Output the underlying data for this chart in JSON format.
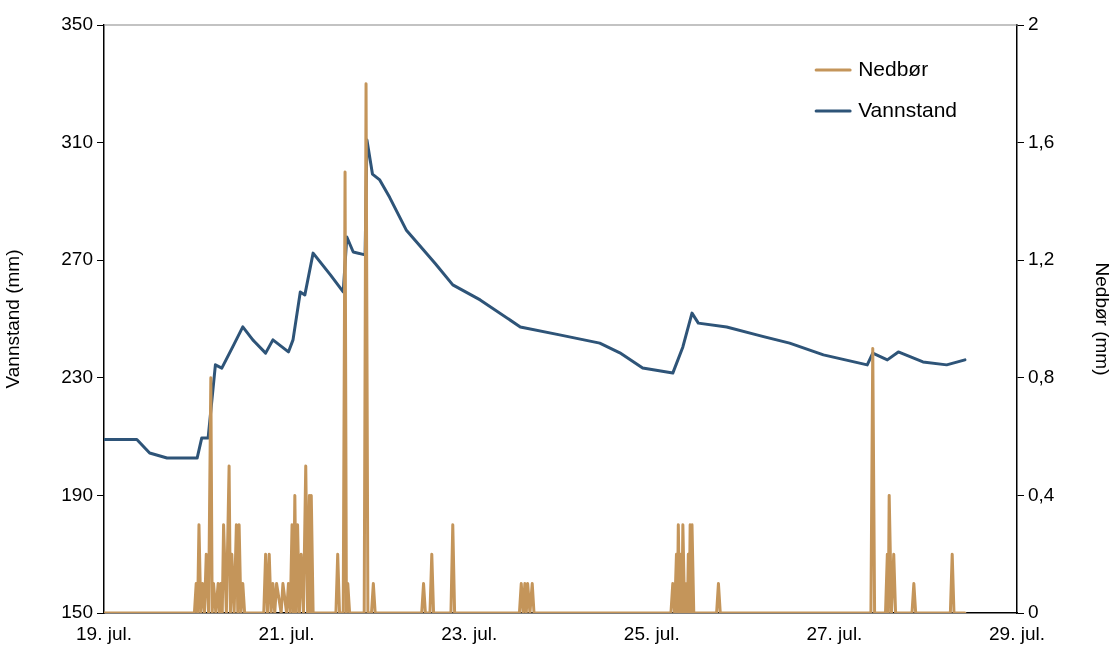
{
  "chart_data": {
    "type": "line",
    "ylabel": "Vannstand (mm)",
    "y2label": "Nedbør (mm)",
    "legend": "top right",
    "grid": false,
    "marker": "none",
    "line_style": "solid",
    "xlim": [
      "--07-19",
      "--07-29"
    ],
    "xticks": [
      {
        "value": "--07-19",
        "label": "19. jul."
      },
      {
        "value": "--07-21",
        "label": "21. jul."
      },
      {
        "value": "--07-23",
        "label": "23. jul."
      },
      {
        "value": "--07-25",
        "label": "25. jul."
      },
      {
        "value": "--07-27",
        "label": "27. jul."
      },
      {
        "value": "--07-29",
        "label": "29. jul."
      }
    ],
    "ylim": [
      150,
      350
    ],
    "yticks": [
      150,
      190,
      230,
      270,
      310,
      350
    ],
    "y2lim": [
      0,
      2
    ],
    "y2ticks": [
      0,
      {
        "value": 0.4,
        "label": "0,4"
      },
      {
        "value": 0.8,
        "label": "0,8"
      },
      {
        "value": 1.2,
        "label": "1,2"
      },
      {
        "value": 1.6,
        "label": "1,6"
      },
      2
    ],
    "series": [
      {
        "name": "Nedbør",
        "color": "#c4955a",
        "axis": "y2",
        "x": [
          "--07-19T00:00",
          "--07-19T23:46",
          "--07-20T00:14",
          "--07-20T00:36",
          "--07-20T00:58",
          "--07-20T01:26",
          "--07-20T01:55",
          "--07-20T02:24",
          "--07-20T02:53",
          "--07-20T03:29",
          "--07-20T04:05",
          "--07-20T04:26",
          "--07-20T04:48",
          "--07-20T05:24",
          "--07-20T06:00",
          "--07-20T06:22",
          "--07-20T06:43",
          "--07-20T07:05",
          "--07-20T07:26",
          "--07-20T08:10",
          "--07-20T08:53",
          "--07-20T09:14",
          "--07-20T09:36",
          "--07-20T10:12",
          "--07-20T10:48",
          "--07-20T11:10",
          "--07-20T11:31",
          "--07-20T12:00",
          "--07-20T12:29",
          "--07-20T12:58",
          "--07-20T18:00",
          "--07-20T18:29",
          "--07-20T18:58",
          "--07-20T19:26",
          "--07-20T19:55",
          "--07-20T20:24",
          "--07-20T20:53",
          "--07-20T21:22",
          "--07-20T22:34",
          "--07-20T23:02",
          "--07-21T00:00",
          "--07-21T00:29",
          "--07-21T00:58",
          "--07-21T01:26",
          "--07-21T01:48",
          "--07-21T02:10",
          "--07-21T02:31",
          "--07-21T02:53",
          "--07-21T03:22",
          "--07-21T03:50",
          "--07-21T04:26",
          "--07-21T05:02",
          "--07-21T05:31",
          "--07-21T06:00",
          "--07-21T06:14",
          "--07-21T06:29",
          "--07-21T06:58",
          "--07-21T12:58",
          "--07-21T13:26",
          "--07-21T13:55",
          "--07-21T14:53",
          "--07-21T15:22",
          "--07-21T15:43",
          "--07-21T16:05",
          "--07-21T16:34",
          "--07-21T20:24",
          "--07-21T20:53",
          "--07-21T21:22",
          "--07-21T22:19",
          "--07-21T22:48",
          "--07-21T23:17",
          "--07-22T11:31",
          "--07-22T12:00",
          "--07-22T12:29",
          "--07-22T13:41",
          "--07-22T14:10",
          "--07-22T14:38",
          "--07-22T19:12",
          "--07-22T19:41",
          "--07-22T20:10",
          "--07-23T13:12",
          "--07-23T13:41",
          "--07-23T14:10",
          "--07-23T14:38",
          "--07-23T15:00",
          "--07-23T15:22",
          "--07-23T15:58",
          "--07-23T16:34",
          "--07-23T17:02",
          "--07-25T05:02",
          "--07-25T05:31",
          "--07-25T06:00",
          "--07-25T06:29",
          "--07-25T06:43",
          "--07-25T06:58",
          "--07-25T07:19",
          "--07-25T07:41",
          "--07-25T07:55",
          "--07-25T08:10",
          "--07-25T08:38",
          "--07-25T09:07",
          "--07-25T09:22",
          "--07-25T09:36",
          "--07-25T09:50",
          "--07-25T10:05",
          "--07-25T10:19",
          "--07-25T10:34",
          "--07-25T11:02",
          "--07-25T17:02",
          "--07-25T17:31",
          "--07-25T18:00",
          "--07-27T09:36",
          "--07-27T10:05",
          "--07-27T10:34",
          "--07-27T13:26",
          "--07-27T13:55",
          "--07-27T14:10",
          "--07-27T14:24",
          "--07-27T15:00",
          "--07-27T15:36",
          "--07-27T16:05",
          "--07-27T20:24",
          "--07-27T20:53",
          "--07-27T21:22",
          "--07-28T06:29",
          "--07-28T06:58",
          "--07-28T07:26",
          "--07-28T10:19"
        ],
        "values": [
          0,
          0,
          0.1,
          0,
          0.3,
          0,
          0.1,
          0,
          0.2,
          0,
          0.8,
          0,
          0.1,
          0,
          0.1,
          0,
          0.1,
          0,
          0.3,
          0,
          0.5,
          0,
          0.2,
          0,
          0.3,
          0,
          0.3,
          0,
          0.1,
          0,
          0,
          0.2,
          0,
          0.2,
          0,
          0.1,
          0,
          0.1,
          0,
          0.1,
          0,
          0.1,
          0,
          0.3,
          0,
          0.4,
          0,
          0.3,
          0,
          0.2,
          0,
          0.5,
          0,
          0.4,
          0,
          0.4,
          0,
          0,
          0.2,
          0,
          0,
          1.5,
          0,
          0.1,
          0,
          0,
          1.8,
          0,
          0,
          0.1,
          0,
          0,
          0.1,
          0,
          0,
          0.2,
          0,
          0,
          0.3,
          0,
          0,
          0.1,
          0,
          0.1,
          0,
          0.1,
          0,
          0.1,
          0,
          0,
          0.1,
          0,
          0.2,
          0,
          0.3,
          0,
          0.2,
          0,
          0.3,
          0,
          0.1,
          0,
          0.2,
          0,
          0.3,
          0,
          0.3,
          0,
          0,
          0.1,
          0,
          0,
          0.9,
          0,
          0,
          0.2,
          0,
          0.4,
          0,
          0.2,
          0,
          0,
          0.1,
          0,
          0,
          0.2,
          0,
          0
        ]
      },
      {
        "name": "Vannstand",
        "color": "#2e5478",
        "x": [
          "--07-19T00:00",
          "--07-19T08:38",
          "--07-19T12:00",
          "--07-19T16:34",
          "--07-20T00:29",
          "--07-20T01:41",
          "--07-20T03:22",
          "--07-20T05:17",
          "--07-20T06:58",
          "--07-20T09:50",
          "--07-20T12:29",
          "--07-20T15:07",
          "--07-20T18:29",
          "--07-20T20:24",
          "--07-21T00:29",
          "--07-21T01:41",
          "--07-21T03:36",
          "--07-21T04:48",
          "--07-21T06:58",
          "--07-21T11:31",
          "--07-21T14:53",
          "--07-21T15:50",
          "--07-21T17:31",
          "--07-21T20:38",
          "--07-21T21:07",
          "--07-21T22:34",
          "--07-22T00:29",
          "--07-22T03:07",
          "--07-22T07:26",
          "--07-22T11:46",
          "--07-22T15:07",
          "--07-22T19:41",
          "--07-23T02:53",
          "--07-23T13:26",
          "--07-23T23:46",
          "--07-24T10:19",
          "--07-24T15:36",
          "--07-24T21:36",
          "--07-25T05:31",
          "--07-25T08:10",
          "--07-25T10:34",
          "--07-25T12:14",
          "--07-25T19:41",
          "--07-26T03:36",
          "--07-26T12:14",
          "--07-26T21:07",
          "--07-27T08:38",
          "--07-27T10:05",
          "--07-27T13:55",
          "--07-27T16:48",
          "--07-27T23:17",
          "--07-28T05:31",
          "--07-28T10:19"
        ],
        "values": [
          209,
          209,
          204.4,
          202.7,
          202.7,
          209.5,
          209.5,
          234.4,
          233.3,
          240.5,
          247.3,
          242.9,
          238.4,
          242.9,
          238.8,
          242.9,
          259.2,
          258.2,
          272.4,
          265,
          259.2,
          277.9,
          272.8,
          271.8,
          310.9,
          299.3,
          297.3,
          291.3,
          280.3,
          273.8,
          268.8,
          261.6,
          256.5,
          247.3,
          244.6,
          241.8,
          238.5,
          233.3,
          231.6,
          240.5,
          252,
          248.6,
          247.3,
          244.6,
          241.8,
          237.8,
          234.4,
          238.4,
          236.1,
          238.8,
          235.4,
          234.4,
          236.1
        ]
      }
    ]
  }
}
